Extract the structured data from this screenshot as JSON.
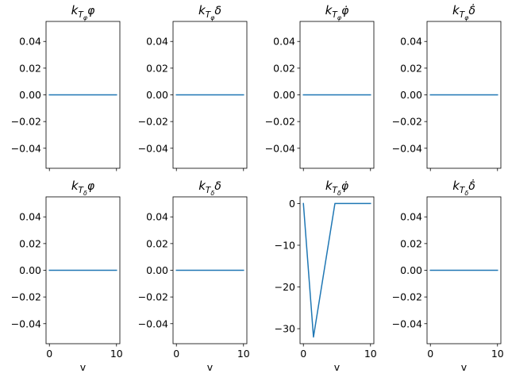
{
  "colors": {
    "line": "#1f77b4",
    "axes": "#000000",
    "background": "#ffffff"
  },
  "chart_data": [
    {
      "type": "line",
      "title": {
        "base": "k",
        "sub1": "T",
        "sub2": "φ",
        "suffix": "φ"
      },
      "xlabel": "",
      "x": [
        0,
        10
      ],
      "series": [
        {
          "values": [
            0,
            0
          ]
        }
      ],
      "xlim": [
        -0.5,
        10.5
      ],
      "ylim": [
        -0.055,
        0.055
      ],
      "yticks": [
        0.04,
        0.02,
        0.0,
        -0.02,
        -0.04
      ],
      "ytick_labels": [
        "0.04",
        "0.02",
        "0.00",
        "−0.02",
        "−0.04"
      ],
      "xticks": [
        0,
        10
      ],
      "xtick_labels": []
    },
    {
      "type": "line",
      "title": {
        "base": "k",
        "sub1": "T",
        "sub2": "φ",
        "suffix": "δ"
      },
      "xlabel": "",
      "x": [
        0,
        10
      ],
      "series": [
        {
          "values": [
            0,
            0
          ]
        }
      ],
      "xlim": [
        -0.5,
        10.5
      ],
      "ylim": [
        -0.055,
        0.055
      ],
      "yticks": [
        0.04,
        0.02,
        0.0,
        -0.02,
        -0.04
      ],
      "ytick_labels": [
        "0.04",
        "0.02",
        "0.00",
        "−0.02",
        "−0.04"
      ],
      "xticks": [
        0,
        10
      ],
      "xtick_labels": []
    },
    {
      "type": "line",
      "title": {
        "base": "k",
        "sub1": "T",
        "sub2": "φ",
        "suffix": "φ̇"
      },
      "xlabel": "",
      "x": [
        0,
        10
      ],
      "series": [
        {
          "values": [
            0,
            0
          ]
        }
      ],
      "xlim": [
        -0.5,
        10.5
      ],
      "ylim": [
        -0.055,
        0.055
      ],
      "yticks": [
        0.04,
        0.02,
        0.0,
        -0.02,
        -0.04
      ],
      "ytick_labels": [
        "0.04",
        "0.02",
        "0.00",
        "−0.02",
        "−0.04"
      ],
      "xticks": [
        0,
        10
      ],
      "xtick_labels": []
    },
    {
      "type": "line",
      "title": {
        "base": "k",
        "sub1": "T",
        "sub2": "φ",
        "suffix": "δ̇"
      },
      "xlabel": "",
      "x": [
        0,
        10
      ],
      "series": [
        {
          "values": [
            0,
            0
          ]
        }
      ],
      "xlim": [
        -0.5,
        10.5
      ],
      "ylim": [
        -0.055,
        0.055
      ],
      "yticks": [
        0.04,
        0.02,
        0.0,
        -0.02,
        -0.04
      ],
      "ytick_labels": [
        "0.04",
        "0.02",
        "0.00",
        "−0.02",
        "−0.04"
      ],
      "xticks": [
        0,
        10
      ],
      "xtick_labels": []
    },
    {
      "type": "line",
      "title": {
        "base": "k",
        "sub1": "T",
        "sub2": "δ",
        "suffix": "φ"
      },
      "xlabel": "v",
      "x": [
        0,
        10
      ],
      "series": [
        {
          "values": [
            0,
            0
          ]
        }
      ],
      "xlim": [
        -0.5,
        10.5
      ],
      "ylim": [
        -0.055,
        0.055
      ],
      "yticks": [
        0.04,
        0.02,
        0.0,
        -0.02,
        -0.04
      ],
      "ytick_labels": [
        "0.04",
        "0.02",
        "0.00",
        "−0.02",
        "−0.04"
      ],
      "xticks": [
        0,
        10
      ],
      "xtick_labels": [
        "0",
        "10"
      ]
    },
    {
      "type": "line",
      "title": {
        "base": "k",
        "sub1": "T",
        "sub2": "δ",
        "suffix": "δ"
      },
      "xlabel": "v",
      "x": [
        0,
        10
      ],
      "series": [
        {
          "values": [
            0,
            0
          ]
        }
      ],
      "xlim": [
        -0.5,
        10.5
      ],
      "ylim": [
        -0.055,
        0.055
      ],
      "yticks": [
        0.04,
        0.02,
        0.0,
        -0.02,
        -0.04
      ],
      "ytick_labels": [
        "0.04",
        "0.02",
        "0.00",
        "−0.02",
        "−0.04"
      ],
      "xticks": [
        0,
        10
      ],
      "xtick_labels": [
        "0",
        "10"
      ]
    },
    {
      "type": "line",
      "title": {
        "base": "k",
        "sub1": "T",
        "sub2": "δ",
        "suffix": "φ̇"
      },
      "xlabel": "v",
      "x": [
        0,
        1.5,
        4.7,
        10
      ],
      "series": [
        {
          "values": [
            0,
            -32,
            0,
            0
          ]
        }
      ],
      "xlim": [
        -0.5,
        10.5
      ],
      "ylim": [
        -33.6,
        1.6
      ],
      "yticks": [
        0,
        -10,
        -20,
        -30
      ],
      "ytick_labels": [
        "0",
        "−10",
        "−20",
        "−30"
      ],
      "xticks": [
        0,
        10
      ],
      "xtick_labels": [
        "0",
        "10"
      ]
    },
    {
      "type": "line",
      "title": {
        "base": "k",
        "sub1": "T",
        "sub2": "δ",
        "suffix": "δ̇"
      },
      "xlabel": "v",
      "x": [
        0,
        10
      ],
      "series": [
        {
          "values": [
            0,
            0
          ]
        }
      ],
      "xlim": [
        -0.5,
        10.5
      ],
      "ylim": [
        -0.055,
        0.055
      ],
      "yticks": [
        0.04,
        0.02,
        0.0,
        -0.02,
        -0.04
      ],
      "ytick_labels": [
        "0.04",
        "0.02",
        "0.00",
        "−0.02",
        "−0.04"
      ],
      "xticks": [
        0,
        10
      ],
      "xtick_labels": [
        "0",
        "10"
      ]
    }
  ]
}
